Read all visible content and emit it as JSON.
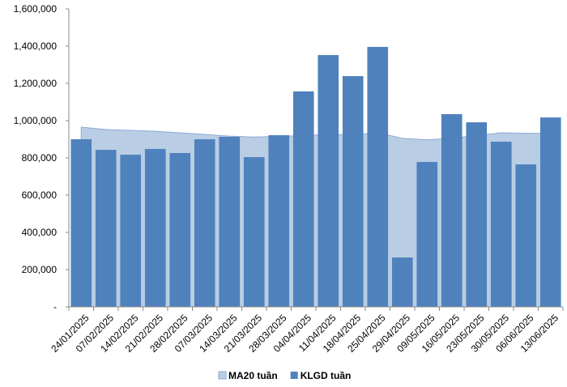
{
  "chart_data": {
    "type": "bar",
    "categories": [
      "24/01/2025",
      "07/02/2025",
      "14/02/2025",
      "21/02/2025",
      "28/02/2025",
      "07/03/2025",
      "14/03/2025",
      "21/03/2025",
      "28/03/2025",
      "04/04/2025",
      "11/04/2025",
      "18/04/2025",
      "25/04/2025",
      "29/04/2025",
      "09/05/2025",
      "16/05/2025",
      "23/05/2025",
      "30/05/2025",
      "06/06/2025",
      "13/06/2025"
    ],
    "series": [
      {
        "name": "MA20 tuần",
        "type": "area",
        "color": "#b9cde5",
        "values": [
          965000,
          952000,
          948000,
          943000,
          935000,
          926000,
          917000,
          912000,
          915000,
          920000,
          925000,
          925000,
          935000,
          905000,
          897000,
          905000,
          920000,
          935000,
          932000,
          932000
        ]
      },
      {
        "name": "KLGD tuần",
        "type": "bar",
        "color": "#4f81bd",
        "values": [
          900000,
          843000,
          817000,
          848000,
          826000,
          900000,
          913000,
          804000,
          922000,
          1157000,
          1352000,
          1239000,
          1396000,
          265000,
          778000,
          1035000,
          991000,
          887000,
          765000,
          1017000
        ]
      }
    ],
    "ylim": [
      0,
      1600000
    ],
    "yticks": [
      {
        "value": 0,
        "label": "-"
      },
      {
        "value": 200000,
        "label": "200,000"
      },
      {
        "value": 400000,
        "label": "400,000"
      },
      {
        "value": 600000,
        "label": "600,000"
      },
      {
        "value": 800000,
        "label": "800,000"
      },
      {
        "value": 1000000,
        "label": "1,000,000"
      },
      {
        "value": 1200000,
        "label": "1,200,000"
      },
      {
        "value": 1400000,
        "label": "1,400,000"
      },
      {
        "value": 1600000,
        "label": "1,600,000"
      }
    ],
    "legend": "bottom"
  }
}
